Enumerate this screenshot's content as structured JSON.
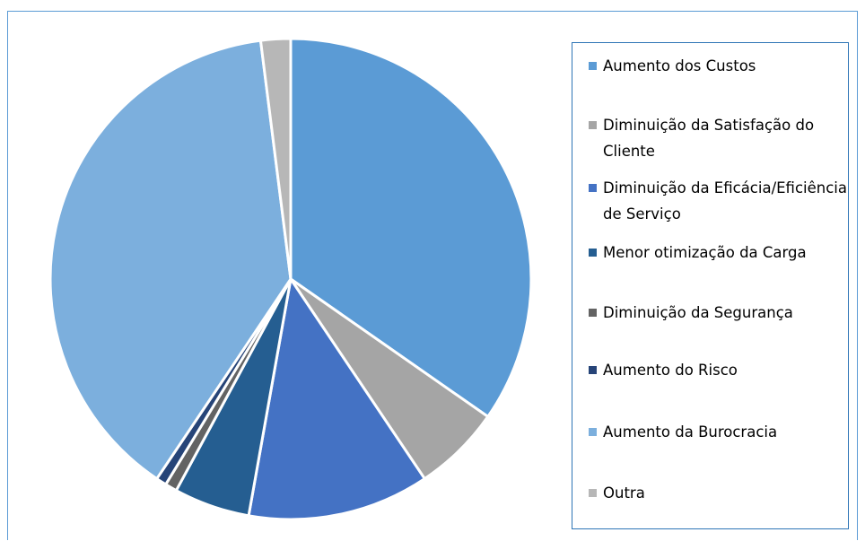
{
  "chart_data": {
    "type": "pie",
    "categories": [
      "Aumento dos Custos",
      "Diminuição da Satisfação do Cliente",
      "Diminuição da Eficácia/Eficiência de Serviço",
      "Menor otimização da Carga",
      "Diminuição da Segurança",
      "Aumento do Risco",
      "Aumento da Burocracia",
      "Outra"
    ],
    "values": [
      34.7,
      5.9,
      12.2,
      5.1,
      0.8,
      0.7,
      38.6,
      2.0
    ],
    "colors": [
      "#5b9bd5",
      "#a5a5a5",
      "#4472c4",
      "#255e91",
      "#636363",
      "#264478",
      "#7cafdd",
      "#b7b7b7"
    ],
    "legend": "right"
  }
}
